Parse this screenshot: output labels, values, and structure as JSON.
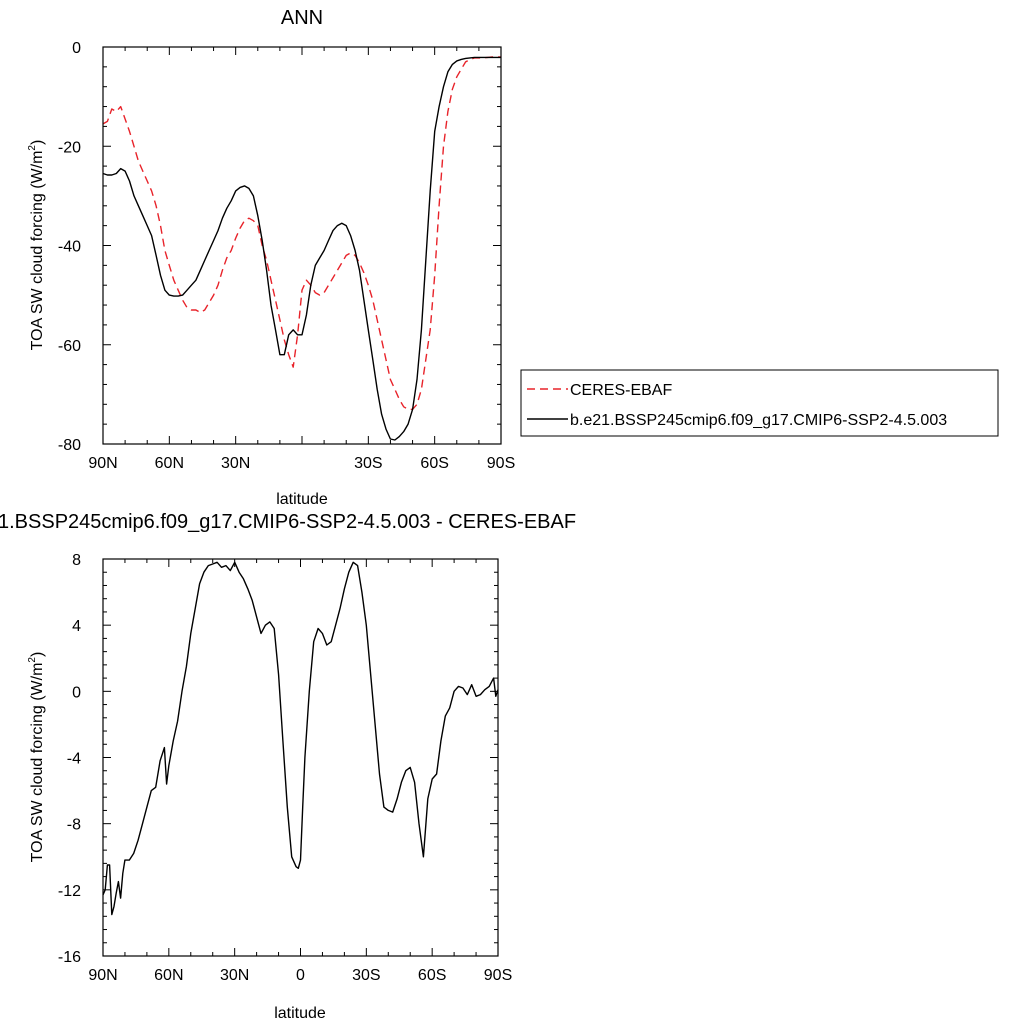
{
  "chart_data": [
    {
      "type": "line",
      "title": "ANN",
      "xlabel": "latitude",
      "ylabel_main": "TOA SW cloud forcing (W/m",
      "ylabel_sup": "2",
      "ylabel_tail": ")",
      "xlim": [
        90,
        -90
      ],
      "ylim": [
        -80,
        0
      ],
      "xticks": [
        90,
        60,
        30,
        0,
        -30,
        -60,
        -90
      ],
      "xticklabels": [
        "90N",
        "60N",
        "30N",
        "",
        "30S",
        "60S",
        "90S"
      ],
      "yticks": [
        0,
        -20,
        -40,
        -60,
        -80
      ],
      "yticklabels": [
        "0",
        "-20",
        "-40",
        "-60",
        "-80"
      ],
      "legend": {
        "placement": "right",
        "entries": [
          "CERES-EBAF",
          "b.e21.BSSP245cmip6.f09_g17.CMIP6-SSP2-4.5.003"
        ]
      },
      "series": [
        {
          "name": "CERES-EBAF",
          "color": "#e8232a",
          "dash": "dashed",
          "x": [
            90,
            88,
            86,
            84,
            82,
            80,
            78,
            76,
            74,
            72,
            70,
            68,
            66,
            64,
            62,
            60,
            58,
            56,
            54,
            52,
            50,
            48,
            46,
            44,
            42,
            40,
            38,
            36,
            34,
            32,
            30,
            28,
            26,
            24,
            22,
            20,
            18,
            16,
            14,
            12,
            10,
            8,
            6,
            4,
            2,
            0,
            -2,
            -4,
            -6,
            -8,
            -10,
            -12,
            -14,
            -16,
            -18,
            -20,
            -22,
            -24,
            -26,
            -28,
            -30,
            -32,
            -34,
            -36,
            -38,
            -40,
            -42,
            -44,
            -46,
            -48,
            -50,
            -52,
            -54,
            -56,
            -58,
            -60,
            -62,
            -64,
            -66,
            -68,
            -70,
            -72,
            -74,
            -76,
            -78,
            -80,
            -82,
            -84,
            -86,
            -88,
            -90
          ],
          "y": [
            -15.5,
            -15,
            -12.5,
            -13,
            -12,
            -14.5,
            -17,
            -20,
            -23,
            -25,
            -27,
            -29,
            -32,
            -36,
            -41,
            -44,
            -47,
            -49,
            -51,
            -52.5,
            -53,
            -53,
            -53.5,
            -53,
            -51.5,
            -50,
            -48,
            -45,
            -42.5,
            -41,
            -38.5,
            -36.5,
            -35,
            -34.5,
            -35,
            -36,
            -40,
            -43,
            -47,
            -51,
            -55,
            -59,
            -62,
            -64.5,
            -58,
            -49,
            -47,
            -48,
            -49.5,
            -50,
            -49.5,
            -48,
            -46.5,
            -45,
            -43.5,
            -42,
            -41.5,
            -42,
            -43.5,
            -45.5,
            -48,
            -51,
            -55,
            -59,
            -63,
            -67,
            -69,
            -71,
            -72.5,
            -73,
            -73,
            -72,
            -69,
            -63,
            -57,
            -46,
            -32,
            -20,
            -13,
            -8.5,
            -6,
            -4.5,
            -3,
            -2.5,
            -2.2,
            -2.2,
            -2.2,
            -2.1,
            -2.0,
            -2.0,
            -2.0
          ]
        },
        {
          "name": "b.e21.BSSP245cmip6.f09_g17.CMIP6-SSP2-4.5.003",
          "color": "#000000",
          "dash": "solid",
          "x": [
            90,
            88,
            86,
            84,
            82,
            80,
            78,
            76,
            74,
            72,
            70,
            68,
            66,
            64,
            62,
            60,
            58,
            56,
            54,
            52,
            50,
            48,
            46,
            44,
            42,
            40,
            38,
            36,
            34,
            32,
            30,
            28,
            26,
            24,
            22,
            20,
            18,
            16,
            14,
            12,
            10,
            8,
            6,
            4,
            2,
            0,
            -2,
            -4,
            -6,
            -8,
            -10,
            -12,
            -14,
            -16,
            -18,
            -20,
            -22,
            -24,
            -26,
            -28,
            -30,
            -32,
            -34,
            -36,
            -38,
            -40,
            -42,
            -44,
            -46,
            -48,
            -50,
            -52,
            -54,
            -56,
            -58,
            -60,
            -62,
            -64,
            -66,
            -68,
            -70,
            -72,
            -74,
            -76,
            -78,
            -80,
            -82,
            -84,
            -86,
            -88,
            -90
          ],
          "y": [
            -25.5,
            -25.8,
            -25.8,
            -25.5,
            -24.5,
            -25,
            -27,
            -30,
            -32,
            -34,
            -36,
            -38,
            -42,
            -46,
            -49,
            -50,
            -50.2,
            -50.2,
            -50,
            -49,
            -48,
            -47,
            -45,
            -43,
            -41,
            -39,
            -37,
            -34.5,
            -32.5,
            -31,
            -29,
            -28.3,
            -28,
            -28.5,
            -30,
            -34,
            -39,
            -45,
            -52,
            -57,
            -62,
            -62,
            -58,
            -57,
            -58,
            -58,
            -54,
            -48,
            -44,
            -42.5,
            -41,
            -39,
            -37,
            -36,
            -35.5,
            -36,
            -38,
            -41,
            -45,
            -51,
            -57,
            -63,
            -69,
            -74,
            -77,
            -79,
            -79.2,
            -78.5,
            -77.5,
            -76,
            -73,
            -67,
            -57,
            -43,
            -29,
            -17,
            -12,
            -8,
            -5,
            -3.5,
            -2.8,
            -2.5,
            -2.3,
            -2.2,
            -2.1,
            -2.1,
            -2.1,
            -2.1,
            -2.1,
            -2.1,
            -2.1
          ]
        }
      ]
    },
    {
      "type": "line",
      "title": "1.BSSP245cmip6.f09_g17.CMIP6-SSP2-4.5.003 - CERES-EBAF",
      "xlabel": "latitude",
      "ylabel_main": "TOA SW cloud forcing (W/m",
      "ylabel_sup": "2",
      "ylabel_tail": ")",
      "xlim": [
        90,
        -90
      ],
      "ylim": [
        -16,
        8
      ],
      "xticks": [
        90,
        60,
        30,
        0,
        -30,
        -60,
        -90
      ],
      "xticklabels": [
        "90N",
        "60N",
        "30N",
        "0",
        "30S",
        "60S",
        "90S"
      ],
      "yticks": [
        8,
        4,
        0,
        -4,
        -8,
        -12,
        -16
      ],
      "yticklabels": [
        "8",
        "4",
        "0",
        "-4",
        "-8",
        "-12",
        "-16"
      ],
      "series": [
        {
          "color": "#000000",
          "dash": "solid",
          "x": [
            90,
            89,
            88,
            87,
            86,
            85,
            84,
            83,
            82,
            81,
            80,
            78,
            76,
            74,
            72,
            70,
            68,
            66,
            64,
            62,
            61,
            60,
            58,
            56,
            54,
            52,
            50,
            48,
            46,
            44,
            42,
            40,
            38,
            36,
            34,
            32,
            30,
            28,
            26,
            24,
            22,
            20,
            18,
            16,
            14,
            12,
            10,
            8,
            6,
            4,
            2,
            1,
            0,
            -1,
            -2,
            -4,
            -6,
            -8,
            -10,
            -12,
            -14,
            -16,
            -18,
            -20,
            -22,
            -24,
            -26,
            -28,
            -30,
            -32,
            -34,
            -36,
            -38,
            -40,
            -42,
            -44,
            -46,
            -48,
            -50,
            -52,
            -54,
            -56,
            -58,
            -60,
            -62,
            -64,
            -66,
            -68,
            -70,
            -72,
            -74,
            -76,
            -78,
            -80,
            -82,
            -84,
            -86,
            -88,
            -89,
            -90
          ],
          "y": [
            -12.3,
            -12,
            -10.5,
            -10.5,
            -13.5,
            -13,
            -12.2,
            -11.5,
            -12.5,
            -11,
            -10.2,
            -10.2,
            -9.8,
            -9,
            -8,
            -7,
            -6,
            -5.8,
            -4.2,
            -3.4,
            -5.6,
            -4.5,
            -3,
            -1.8,
            0,
            1.5,
            3.5,
            5,
            6.5,
            7.2,
            7.6,
            7.7,
            7.8,
            7.5,
            7.6,
            7.3,
            7.8,
            7.2,
            6.8,
            6.2,
            5.5,
            4.5,
            3.5,
            4.0,
            4.2,
            3.8,
            1,
            -3,
            -7,
            -10,
            -10.6,
            -10.7,
            -10.2,
            -7,
            -4,
            0,
            3,
            3.8,
            3.5,
            2.8,
            3,
            4,
            5,
            6.2,
            7.2,
            7.8,
            7.6,
            6,
            4,
            1,
            -2,
            -5,
            -7,
            -7.2,
            -7.3,
            -6.5,
            -5.5,
            -4.8,
            -4.6,
            -5.5,
            -8,
            -10,
            -6.5,
            -5.3,
            -5,
            -3,
            -1.5,
            -1,
            0,
            0.3,
            0.2,
            -0.2,
            0.4,
            -0.3,
            -0.2,
            0.1,
            0.3,
            0.8,
            -0.3,
            0.1
          ]
        }
      ]
    }
  ]
}
